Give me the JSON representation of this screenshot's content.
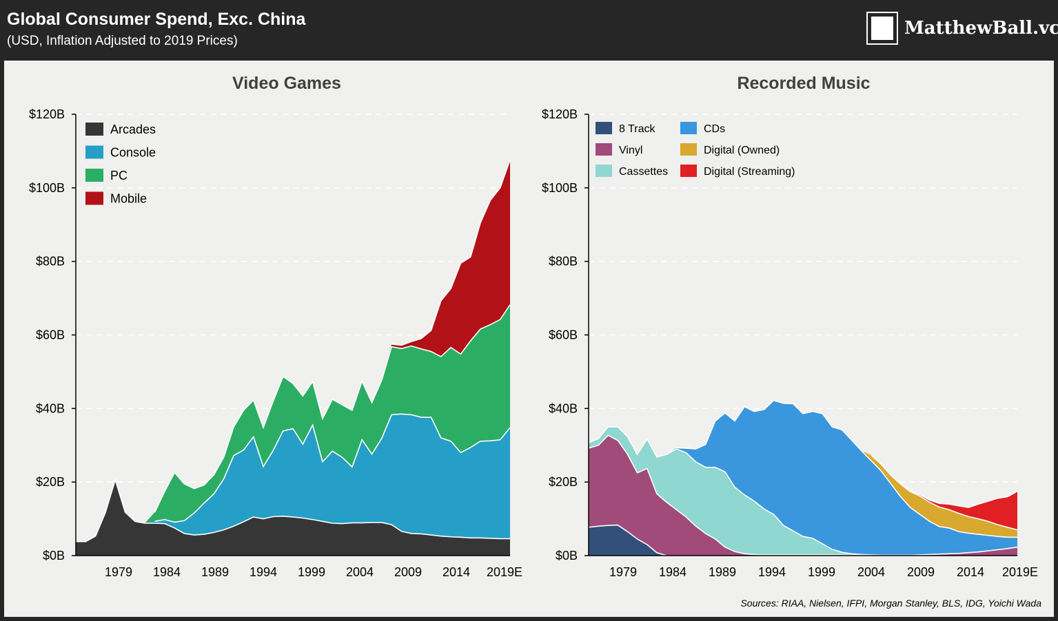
{
  "header": {
    "title": "Global Consumer Spend, Exc. China",
    "subtitle": "(USD, Inflation Adjusted to 2019 Prices)",
    "logo_text": "MatthewBall.vc"
  },
  "sources": "Sources: RIAA, Nielsen, IFPI, Morgan Stanley, BLS, IDG, Yoichi Wada",
  "chart_data": [
    {
      "type": "area",
      "stacked": true,
      "title": "Video Games",
      "ylim": [
        0,
        120
      ],
      "yticks": [
        "$0B",
        "$20B",
        "$40B",
        "$60B",
        "$80B",
        "$100B",
        "$120B"
      ],
      "xticks": [
        "1979",
        "1984",
        "1989",
        "1994",
        "1999",
        "2004",
        "2009",
        "2014",
        "2019E"
      ],
      "xtick_years": [
        1979,
        1984,
        1989,
        1994,
        1999,
        2004,
        2009,
        2014,
        2019
      ],
      "grid": true,
      "legend_position": "top-left",
      "x": [
        1975,
        1976,
        1977,
        1978,
        1979,
        1980,
        1981,
        1982,
        1983,
        1984,
        1985,
        1986,
        1987,
        1988,
        1989,
        1990,
        1991,
        1992,
        1993,
        1994,
        1995,
        1996,
        1997,
        1998,
        1999,
        2000,
        2001,
        2002,
        2003,
        2004,
        2005,
        2006,
        2007,
        2008,
        2009,
        2010,
        2011,
        2012,
        2013,
        2014,
        2015,
        2016,
        2017,
        2018,
        2019
      ],
      "series": [
        {
          "name": "Arcades",
          "color": "#363636",
          "values": [
            3.8,
            3.8,
            5.3,
            11.7,
            20.6,
            11.8,
            9.3,
            8.8,
            8.8,
            8.7,
            7.5,
            6.0,
            5.6,
            5.8,
            6.3,
            7.0,
            8.0,
            9.2,
            10.5,
            10.0,
            10.6,
            10.7,
            10.5,
            10.2,
            9.8,
            9.3,
            8.8,
            8.7,
            8.9,
            8.9,
            9.0,
            9.0,
            8.4,
            6.6,
            6.0,
            5.9,
            5.6,
            5.3,
            5.1,
            5.0,
            4.8,
            4.8,
            4.7,
            4.6,
            4.6
          ]
        },
        {
          "name": "Console",
          "color": "#259fc7",
          "values": [
            0,
            0,
            0,
            0,
            0,
            0,
            0,
            0,
            0.5,
            1.1,
            1.6,
            3.5,
            6.0,
            8.5,
            10.5,
            13.9,
            19.2,
            19.5,
            21.8,
            14.2,
            18.0,
            23.2,
            24.0,
            20.1,
            25.7,
            16.2,
            19.6,
            18.0,
            15.2,
            22.6,
            18.6,
            22.9,
            29.9,
            31.9,
            32.3,
            31.7,
            32.0,
            26.7,
            26.0,
            23.0,
            24.6,
            26.3,
            26.5,
            26.9,
            30.2
          ]
        },
        {
          "name": "PC",
          "color": "#2bae63",
          "values": [
            0,
            0,
            0,
            0,
            0,
            0,
            0,
            0,
            2.5,
            7.6,
            13.5,
            10.0,
            6.6,
            4.9,
            5.2,
            5.9,
            7.8,
            10.8,
            10.0,
            10.6,
            13.4,
            14.8,
            12.3,
            13.1,
            11.8,
            11.7,
            14.1,
            14.3,
            15.4,
            15.9,
            14.0,
            15.8,
            18.5,
            17.8,
            18.7,
            18.6,
            17.9,
            22.1,
            25.5,
            26.8,
            29.0,
            30.5,
            31.6,
            32.7,
            33.4
          ]
        },
        {
          "name": "Mobile",
          "color": "#b21118",
          "values": [
            0,
            0,
            0,
            0,
            0,
            0,
            0,
            0,
            0,
            0,
            0,
            0,
            0,
            0,
            0,
            0,
            0,
            0,
            0,
            0,
            0,
            0,
            0,
            0,
            0,
            0,
            0,
            0,
            0,
            0,
            0,
            0,
            0.7,
            0.9,
            1.2,
            2.8,
            5.7,
            15.2,
            16.0,
            24.7,
            22.8,
            28.9,
            33.8,
            35.8,
            39.4
          ]
        }
      ]
    },
    {
      "type": "area",
      "stacked": true,
      "title": "Recorded Music",
      "ylim": [
        0,
        120
      ],
      "yticks": [
        "$0B",
        "$20B",
        "$40B",
        "$60B",
        "$80B",
        "$100B",
        "$120B"
      ],
      "xticks": [
        "1979",
        "1984",
        "1989",
        "1994",
        "1999",
        "2004",
        "2009",
        "2014",
        "2019E"
      ],
      "xtick_years": [
        1979,
        1984,
        1989,
        1994,
        1999,
        2004,
        2009,
        2014,
        2019
      ],
      "grid": true,
      "legend_position": "top-left",
      "x": [
        1975,
        1976,
        1977,
        1978,
        1979,
        1980,
        1981,
        1982,
        1983,
        1984,
        1985,
        1986,
        1987,
        1988,
        1989,
        1990,
        1991,
        1992,
        1993,
        1994,
        1995,
        1996,
        1997,
        1998,
        1999,
        2000,
        2001,
        2002,
        2003,
        2004,
        2005,
        2006,
        2007,
        2008,
        2009,
        2010,
        2011,
        2012,
        2013,
        2014,
        2015,
        2016,
        2017,
        2018,
        2019
      ],
      "series": [
        {
          "name": "8 Track",
          "color": "#33507a",
          "values": [
            7.7,
            8.0,
            8.2,
            8.3,
            6.5,
            4.5,
            3.0,
            0.8,
            0,
            0,
            0,
            0,
            0,
            0,
            0,
            0,
            0,
            0,
            0,
            0,
            0,
            0,
            0,
            0,
            0,
            0,
            0,
            0,
            0,
            0,
            0,
            0,
            0,
            0,
            0,
            0,
            0,
            0,
            0,
            0,
            0,
            0,
            0,
            0,
            0
          ]
        },
        {
          "name": "Vinyl",
          "color": "#a04b7a",
          "values": [
            21.5,
            22.0,
            24.5,
            23.0,
            21.0,
            18.0,
            20.7,
            16.0,
            14.5,
            12.5,
            10.5,
            8.0,
            6.0,
            4.5,
            2.3,
            1.1,
            0.5,
            0.3,
            0.2,
            0.2,
            0.2,
            0.2,
            0.2,
            0.2,
            0.2,
            0.2,
            0.2,
            0.1,
            0.1,
            0.1,
            0.1,
            0.1,
            0.1,
            0.1,
            0.2,
            0.3,
            0.4,
            0.5,
            0.6,
            0.8,
            1.0,
            1.3,
            1.6,
            1.9,
            2.3
          ]
        },
        {
          "name": "Cassettes",
          "color": "#8fd7d0",
          "values": [
            1.5,
            1.8,
            2.3,
            3.7,
            4.8,
            5.0,
            8.0,
            10.0,
            13.0,
            16.5,
            17.5,
            17.5,
            18.0,
            19.5,
            20.5,
            17.5,
            16.0,
            14.5,
            12.5,
            11.0,
            8.0,
            6.5,
            5.0,
            4.5,
            3.0,
            1.5,
            0.7,
            0.4,
            0.2,
            0.1,
            0,
            0,
            0,
            0,
            0,
            0,
            0,
            0,
            0,
            0,
            0,
            0,
            0,
            0,
            0
          ]
        },
        {
          "name": "CDs",
          "color": "#3a97dd",
          "values": [
            0,
            0,
            0,
            0,
            0,
            0,
            0,
            0,
            0,
            0.3,
            1.2,
            3.5,
            6.2,
            12.6,
            16.0,
            18.0,
            24.0,
            24.4,
            27.0,
            31.0,
            33.2,
            34.6,
            33.4,
            34.5,
            35.4,
            33.3,
            33.3,
            30.9,
            28.2,
            25.6,
            23.0,
            19.5,
            16.0,
            13.0,
            11.0,
            9.0,
            7.5,
            7.0,
            5.9,
            5.3,
            4.8,
            4.2,
            3.6,
            3.1,
            2.7
          ]
        },
        {
          "name": "Digital (Owned)",
          "color": "#d9a82e",
          "values": [
            0,
            0,
            0,
            0,
            0,
            0,
            0,
            0,
            0,
            0,
            0,
            0,
            0,
            0,
            0,
            0,
            0,
            0,
            0,
            0,
            0,
            0,
            0,
            0,
            0,
            0,
            0,
            0,
            0,
            1.5,
            1.8,
            2.3,
            3.4,
            4.3,
            5.0,
            5.2,
            5.3,
            5.0,
            5.0,
            4.5,
            4.2,
            3.8,
            3.2,
            2.7,
            2.0
          ]
        },
        {
          "name": "Digital (Streaming)",
          "color": "#e02024",
          "values": [
            0,
            0,
            0,
            0,
            0,
            0,
            0,
            0,
            0,
            0,
            0,
            0,
            0,
            0,
            0,
            0,
            0,
            0,
            0,
            0,
            0,
            0,
            0,
            0,
            0,
            0,
            0,
            0,
            0,
            0,
            0,
            0,
            0.1,
            0.2,
            0.4,
            0.6,
            1.0,
            1.5,
            2.0,
            2.5,
            4.0,
            5.5,
            7.2,
            8.3,
            10.5
          ]
        }
      ]
    }
  ]
}
